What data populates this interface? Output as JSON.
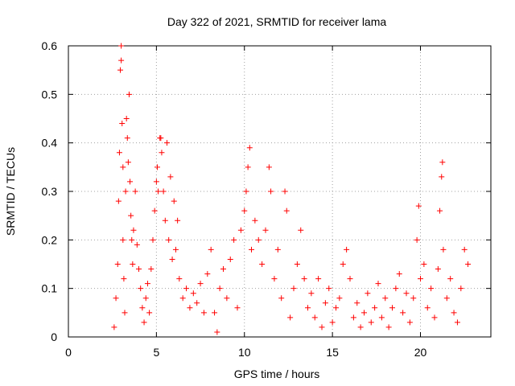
{
  "chart_data": {
    "type": "scatter",
    "title": "Day 322 of 2021, SRMTID for receiver lama",
    "xlabel": "GPS time / hours",
    "ylabel": "SRMTID / TECUs",
    "xlim": [
      0,
      24
    ],
    "ylim": [
      0,
      0.6
    ],
    "xticks": [
      0,
      5,
      10,
      15,
      20
    ],
    "xtick_labels": [
      "0",
      "5",
      "10",
      "15",
      "20"
    ],
    "yticks": [
      0,
      0.1,
      0.2,
      0.3,
      0.4,
      0.5,
      0.6
    ],
    "ytick_labels": [
      "0",
      "0.1",
      "0.2",
      "0.3",
      "0.4",
      "0.5",
      "0.6"
    ],
    "grid": true,
    "series": [
      {
        "name": "SRMTID",
        "marker": "+",
        "color": "#ff0000",
        "points": [
          [
            2.6,
            0.02
          ],
          [
            2.7,
            0.08
          ],
          [
            2.8,
            0.15
          ],
          [
            2.85,
            0.28
          ],
          [
            2.9,
            0.38
          ],
          [
            2.95,
            0.55
          ],
          [
            3.0,
            0.57
          ],
          [
            3.0,
            0.6
          ],
          [
            3.05,
            0.44
          ],
          [
            3.1,
            0.35
          ],
          [
            3.1,
            0.2
          ],
          [
            3.15,
            0.12
          ],
          [
            3.2,
            0.05
          ],
          [
            3.25,
            0.3
          ],
          [
            3.3,
            0.45
          ],
          [
            3.35,
            0.41
          ],
          [
            3.4,
            0.36
          ],
          [
            3.45,
            0.5
          ],
          [
            3.5,
            0.32
          ],
          [
            3.55,
            0.25
          ],
          [
            3.6,
            0.2
          ],
          [
            3.65,
            0.15
          ],
          [
            3.7,
            0.22
          ],
          [
            3.8,
            0.3
          ],
          [
            3.9,
            0.19
          ],
          [
            4.0,
            0.14
          ],
          [
            4.1,
            0.1
          ],
          [
            4.2,
            0.06
          ],
          [
            4.3,
            0.03
          ],
          [
            4.4,
            0.08
          ],
          [
            4.5,
            0.11
          ],
          [
            4.6,
            0.05
          ],
          [
            4.7,
            0.14
          ],
          [
            4.8,
            0.2
          ],
          [
            4.9,
            0.26
          ],
          [
            5.0,
            0.32
          ],
          [
            5.05,
            0.35
          ],
          [
            5.1,
            0.3
          ],
          [
            5.2,
            0.41
          ],
          [
            5.25,
            0.41
          ],
          [
            5.3,
            0.38
          ],
          [
            5.4,
            0.3
          ],
          [
            5.5,
            0.24
          ],
          [
            5.6,
            0.4
          ],
          [
            5.7,
            0.2
          ],
          [
            5.8,
            0.33
          ],
          [
            5.9,
            0.16
          ],
          [
            6.0,
            0.28
          ],
          [
            6.1,
            0.18
          ],
          [
            6.2,
            0.24
          ],
          [
            6.3,
            0.12
          ],
          [
            6.5,
            0.08
          ],
          [
            6.7,
            0.1
          ],
          [
            6.9,
            0.06
          ],
          [
            7.1,
            0.09
          ],
          [
            7.3,
            0.07
          ],
          [
            7.5,
            0.11
          ],
          [
            7.7,
            0.05
          ],
          [
            7.9,
            0.13
          ],
          [
            8.1,
            0.18
          ],
          [
            8.3,
            0.05
          ],
          [
            8.45,
            0.01
          ],
          [
            8.6,
            0.1
          ],
          [
            8.8,
            0.14
          ],
          [
            9.0,
            0.08
          ],
          [
            9.2,
            0.16
          ],
          [
            9.4,
            0.2
          ],
          [
            9.6,
            0.06
          ],
          [
            9.8,
            0.22
          ],
          [
            10.0,
            0.26
          ],
          [
            10.1,
            0.3
          ],
          [
            10.2,
            0.35
          ],
          [
            10.3,
            0.39
          ],
          [
            10.4,
            0.18
          ],
          [
            10.6,
            0.24
          ],
          [
            10.8,
            0.2
          ],
          [
            11.0,
            0.15
          ],
          [
            11.2,
            0.22
          ],
          [
            11.4,
            0.35
          ],
          [
            11.5,
            0.3
          ],
          [
            11.7,
            0.12
          ],
          [
            11.9,
            0.18
          ],
          [
            12.1,
            0.08
          ],
          [
            12.3,
            0.3
          ],
          [
            12.4,
            0.26
          ],
          [
            12.6,
            0.04
          ],
          [
            12.8,
            0.1
          ],
          [
            13.0,
            0.15
          ],
          [
            13.2,
            0.22
          ],
          [
            13.4,
            0.12
          ],
          [
            13.6,
            0.06
          ],
          [
            13.8,
            0.09
          ],
          [
            14.0,
            0.04
          ],
          [
            14.2,
            0.12
          ],
          [
            14.4,
            0.02
          ],
          [
            14.6,
            0.07
          ],
          [
            14.8,
            0.1
          ],
          [
            15.0,
            0.03
          ],
          [
            15.2,
            0.06
          ],
          [
            15.4,
            0.08
          ],
          [
            15.6,
            0.15
          ],
          [
            15.8,
            0.18
          ],
          [
            16.0,
            0.12
          ],
          [
            16.2,
            0.04
          ],
          [
            16.4,
            0.07
          ],
          [
            16.6,
            0.02
          ],
          [
            16.8,
            0.05
          ],
          [
            17.0,
            0.09
          ],
          [
            17.2,
            0.03
          ],
          [
            17.4,
            0.06
          ],
          [
            17.6,
            0.11
          ],
          [
            17.8,
            0.04
          ],
          [
            18.0,
            0.08
          ],
          [
            18.2,
            0.02
          ],
          [
            18.4,
            0.06
          ],
          [
            18.6,
            0.1
          ],
          [
            18.8,
            0.13
          ],
          [
            19.0,
            0.05
          ],
          [
            19.2,
            0.09
          ],
          [
            19.4,
            0.03
          ],
          [
            19.6,
            0.08
          ],
          [
            19.8,
            0.2
          ],
          [
            19.9,
            0.27
          ],
          [
            20.0,
            0.12
          ],
          [
            20.2,
            0.15
          ],
          [
            20.4,
            0.06
          ],
          [
            20.6,
            0.1
          ],
          [
            20.8,
            0.04
          ],
          [
            21.0,
            0.14
          ],
          [
            21.1,
            0.26
          ],
          [
            21.2,
            0.33
          ],
          [
            21.25,
            0.36
          ],
          [
            21.3,
            0.18
          ],
          [
            21.5,
            0.08
          ],
          [
            21.7,
            0.12
          ],
          [
            21.9,
            0.05
          ],
          [
            22.1,
            0.03
          ],
          [
            22.3,
            0.1
          ],
          [
            22.5,
            0.18
          ],
          [
            22.7,
            0.15
          ]
        ]
      }
    ]
  }
}
